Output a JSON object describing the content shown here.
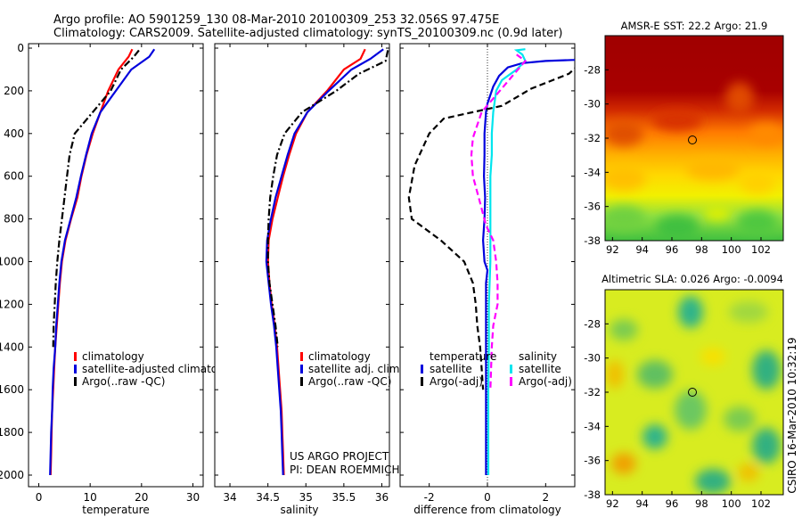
{
  "header": {
    "line1": "Argo profile: AO 5901259_130 08-Mar-2010 20100309_253 32.056S 97.475E",
    "line2": "Climatology: CARS2009. Satellite-adjusted climatology: synTS_20100309.nc (0.9d later)"
  },
  "credits": {
    "project": "US ARGO PROJECT",
    "pi": "PI: DEAN ROEMMICH",
    "stamp": "CSIRO 16-Mar-2010 10:32:19"
  },
  "colors": {
    "climatology": "#ff0000",
    "satellite": "#0000dd",
    "argo": "#000000",
    "salinity_satellite": "#00e5ee",
    "salinity_argo": "#ff00ff",
    "map_land": "#000000"
  },
  "chart_data": [
    {
      "id": "temperature",
      "type": "line",
      "xlabel": "temperature",
      "ylabel": "",
      "xlim": [
        -2,
        32
      ],
      "ylim": [
        2050,
        0
      ],
      "xticks": [
        "0",
        "10",
        "20",
        "30"
      ],
      "yticks": [
        "0",
        "200",
        "400",
        "600",
        "800",
        "1000",
        "1200",
        "1400",
        "1600",
        "1800",
        "2000"
      ],
      "legend": [
        {
          "label": "climatology",
          "color": "#ff0000"
        },
        {
          "label": "satellite-adjusted climatology",
          "color": "#0000dd"
        },
        {
          "label": "Argo(..raw -QC)",
          "color": "#000000"
        }
      ],
      "series": [
        {
          "name": "climatology",
          "style": "solid",
          "points": [
            [
              18.2,
              5
            ],
            [
              17.5,
              40
            ],
            [
              15.5,
              100
            ],
            [
              13.5,
              200
            ],
            [
              12,
              300
            ],
            [
              10.5,
              400
            ],
            [
              9.3,
              500
            ],
            [
              8.3,
              600
            ],
            [
              7.5,
              700
            ],
            [
              6.3,
              800
            ],
            [
              5.2,
              900
            ],
            [
              4.5,
              1000
            ],
            [
              4.1,
              1100
            ],
            [
              3.8,
              1200
            ],
            [
              3.5,
              1300
            ],
            [
              3.2,
              1400
            ],
            [
              3,
              1500
            ],
            [
              2.8,
              1600
            ],
            [
              2.6,
              1700
            ],
            [
              2.5,
              1800
            ],
            [
              2.4,
              1900
            ],
            [
              2.3,
              2000
            ]
          ]
        },
        {
          "name": "satellite-adjusted climatology",
          "style": "solid",
          "points": [
            [
              22.5,
              5
            ],
            [
              21.5,
              40
            ],
            [
              18,
              100
            ],
            [
              15,
              200
            ],
            [
              12,
              300
            ],
            [
              10.3,
              400
            ],
            [
              9.2,
              500
            ],
            [
              8.2,
              600
            ],
            [
              7.3,
              700
            ],
            [
              6.2,
              800
            ],
            [
              5.1,
              900
            ],
            [
              4.4,
              1000
            ],
            [
              4,
              1100
            ],
            [
              3.7,
              1200
            ],
            [
              3.4,
              1300
            ],
            [
              3.2,
              1400
            ],
            [
              2.9,
              1500
            ],
            [
              2.7,
              1600
            ],
            [
              2.6,
              1700
            ],
            [
              2.4,
              1800
            ],
            [
              2.3,
              1900
            ],
            [
              2.2,
              2000
            ]
          ]
        },
        {
          "name": "Argo(..raw -QC)",
          "style": "dashdot",
          "points": [
            [
              19.5,
              10
            ],
            [
              18.5,
              40
            ],
            [
              16,
              100
            ],
            [
              14,
              200
            ],
            [
              10.5,
              300
            ],
            [
              7,
              400
            ],
            [
              6,
              500
            ],
            [
              5.5,
              600
            ],
            [
              5,
              700
            ],
            [
              4.5,
              800
            ],
            [
              4,
              900
            ],
            [
              3.6,
              1000
            ],
            [
              3.3,
              1100
            ],
            [
              3.1,
              1200
            ],
            [
              2.9,
              1300
            ],
            [
              2.8,
              1400
            ]
          ]
        }
      ]
    },
    {
      "id": "salinity",
      "type": "line",
      "xlabel": "salinity",
      "ylabel": "",
      "xlim": [
        33.8,
        36.1
      ],
      "ylim": [
        2050,
        0
      ],
      "xticks": [
        "34",
        "34.5",
        "35",
        "35.5",
        "36"
      ],
      "legend": [
        {
          "label": "climatology",
          "color": "#ff0000"
        },
        {
          "label": "satellite adj. clim.",
          "color": "#0000dd"
        },
        {
          "label": "Argo(..raw -QC)",
          "color": "#000000"
        }
      ],
      "series": [
        {
          "name": "climatology",
          "style": "solid",
          "points": [
            [
              35.78,
              5
            ],
            [
              35.72,
              50
            ],
            [
              35.5,
              100
            ],
            [
              35.28,
              200
            ],
            [
              35.02,
              300
            ],
            [
              34.87,
              400
            ],
            [
              34.78,
              500
            ],
            [
              34.7,
              600
            ],
            [
              34.63,
              700
            ],
            [
              34.56,
              800
            ],
            [
              34.51,
              900
            ],
            [
              34.5,
              1000
            ],
            [
              34.52,
              1100
            ],
            [
              34.55,
              1200
            ],
            [
              34.59,
              1300
            ],
            [
              34.62,
              1400
            ],
            [
              34.64,
              1500
            ],
            [
              34.66,
              1600
            ],
            [
              34.68,
              1700
            ],
            [
              34.69,
              1800
            ],
            [
              34.7,
              1900
            ],
            [
              34.71,
              2000
            ]
          ]
        },
        {
          "name": "satellite adj. clim.",
          "style": "solid",
          "points": [
            [
              36.02,
              5
            ],
            [
              35.85,
              50
            ],
            [
              35.6,
              100
            ],
            [
              35.3,
              200
            ],
            [
              35.02,
              300
            ],
            [
              34.85,
              400
            ],
            [
              34.76,
              500
            ],
            [
              34.68,
              600
            ],
            [
              34.6,
              700
            ],
            [
              34.54,
              800
            ],
            [
              34.49,
              900
            ],
            [
              34.48,
              1000
            ],
            [
              34.51,
              1100
            ],
            [
              34.54,
              1200
            ],
            [
              34.58,
              1300
            ],
            [
              34.61,
              1400
            ],
            [
              34.63,
              1500
            ],
            [
              34.65,
              1600
            ],
            [
              34.67,
              1700
            ],
            [
              34.68,
              1800
            ],
            [
              34.69,
              1900
            ],
            [
              34.7,
              2000
            ]
          ]
        },
        {
          "name": "Argo(..raw -QC)",
          "style": "dashdot",
          "points": [
            [
              36.08,
              10
            ],
            [
              36.05,
              60
            ],
            [
              35.7,
              120
            ],
            [
              35.4,
              200
            ],
            [
              34.95,
              300
            ],
            [
              34.72,
              400
            ],
            [
              34.62,
              500
            ],
            [
              34.57,
              600
            ],
            [
              34.53,
              700
            ],
            [
              34.51,
              800
            ],
            [
              34.5,
              900
            ],
            [
              34.5,
              1000
            ],
            [
              34.52,
              1100
            ],
            [
              34.56,
              1200
            ],
            [
              34.6,
              1300
            ],
            [
              34.63,
              1400
            ]
          ]
        }
      ]
    },
    {
      "id": "difference",
      "type": "line",
      "xlabel": "difference from climatology",
      "ylabel": "",
      "xlim": [
        -3,
        3
      ],
      "ylim": [
        2050,
        0
      ],
      "xticks": [
        "-2",
        "0",
        "2"
      ],
      "legend_groups": [
        {
          "title": "temperature",
          "items": [
            {
              "label": "satellite",
              "color": "#0000dd"
            },
            {
              "label": "Argo(-adj)",
              "color": "#000000"
            }
          ]
        },
        {
          "title": "salinity",
          "items": [
            {
              "label": "satellite",
              "color": "#00e5ee"
            },
            {
              "label": "Argo(-adj)",
              "color": "#ff00ff"
            }
          ]
        }
      ],
      "series": [
        {
          "name": "temperature satellite",
          "style": "solid",
          "points": [
            [
              3.3,
              50
            ],
            [
              3.0,
              55
            ],
            [
              2,
              60
            ],
            [
              1.2,
              70
            ],
            [
              0.7,
              90
            ],
            [
              0.4,
              130
            ],
            [
              0.2,
              180
            ],
            [
              0,
              260
            ],
            [
              -0.05,
              300
            ],
            [
              -0.1,
              400
            ],
            [
              -0.1,
              500
            ],
            [
              -0.12,
              600
            ],
            [
              -0.08,
              700
            ],
            [
              -0.1,
              800
            ],
            [
              -0.15,
              900
            ],
            [
              -0.1,
              1000
            ],
            [
              0,
              1040
            ],
            [
              -0.05,
              1100
            ],
            [
              -0.05,
              1200
            ],
            [
              -0.05,
              1300
            ],
            [
              -0.05,
              1400
            ],
            [
              -0.05,
              1500
            ],
            [
              -0.05,
              1600
            ],
            [
              -0.05,
              1700
            ],
            [
              -0.05,
              1800
            ],
            [
              -0.05,
              1900
            ],
            [
              -0.05,
              2000
            ]
          ]
        },
        {
          "name": "temperature Argo(-adj)",
          "style": "dashed",
          "points": [
            [
              3,
              45
            ],
            [
              3.2,
              70
            ],
            [
              2.8,
              120
            ],
            [
              1.5,
              190
            ],
            [
              0.5,
              270
            ],
            [
              -1.5,
              330
            ],
            [
              -2,
              400
            ],
            [
              -2.5,
              550
            ],
            [
              -2.7,
              700
            ],
            [
              -2.6,
              800
            ],
            [
              -1.6,
              900
            ],
            [
              -0.8,
              1000
            ],
            [
              -0.5,
              1100
            ],
            [
              -0.4,
              1200
            ],
            [
              -0.35,
              1300
            ],
            [
              -0.25,
              1400
            ],
            [
              -0.2,
              1500
            ],
            [
              -0.15,
              1600
            ]
          ]
        },
        {
          "name": "salinity satellite",
          "style": "solid",
          "points": [
            [
              1.3,
              5
            ],
            [
              1.0,
              10
            ],
            [
              1.2,
              30
            ],
            [
              1.3,
              60
            ],
            [
              1.0,
              100
            ],
            [
              0.5,
              150
            ],
            [
              0.3,
              200
            ],
            [
              0.2,
              300
            ],
            [
              0.15,
              400
            ],
            [
              0.15,
              500
            ],
            [
              0.1,
              600
            ],
            [
              0.1,
              800
            ],
            [
              0.1,
              1000
            ],
            [
              0.05,
              1200
            ],
            [
              0.05,
              1400
            ],
            [
              0.03,
              1600
            ],
            [
              0.03,
              1800
            ],
            [
              0.03,
              2000
            ]
          ]
        },
        {
          "name": "salinity Argo(-adj)",
          "style": "dashed",
          "points": [
            [
              1.0,
              30
            ],
            [
              1.3,
              60
            ],
            [
              0.8,
              140
            ],
            [
              0.3,
              220
            ],
            [
              -0.2,
              300
            ],
            [
              -0.5,
              420
            ],
            [
              -0.55,
              500
            ],
            [
              -0.5,
              600
            ],
            [
              -0.3,
              700
            ],
            [
              -0.05,
              830
            ],
            [
              0.2,
              900
            ],
            [
              0.3,
              1000
            ],
            [
              0.35,
              1100
            ],
            [
              0.35,
              1200
            ],
            [
              0.2,
              1300
            ],
            [
              0.15,
              1400
            ],
            [
              0.1,
              1600
            ]
          ]
        }
      ]
    },
    {
      "id": "sst-map",
      "type": "heatmap",
      "title": "AMSR-E SST: 22.2 Argo: 21.9",
      "xlim": [
        91.5,
        103.5
      ],
      "ylim": [
        -38,
        -26
      ],
      "xticks": [
        "92",
        "94",
        "96",
        "98",
        "100",
        "102"
      ],
      "yticks": [
        "-28",
        "-30",
        "-32",
        "-34",
        "-36",
        "-38"
      ],
      "argo_position": [
        97.475,
        -32.056
      ],
      "colormap": "jet"
    },
    {
      "id": "sla-map",
      "type": "heatmap",
      "title": "Altimetric SLA: 0.026 Argo: -0.0094",
      "xlim": [
        91.5,
        103.5
      ],
      "ylim": [
        -38,
        -26
      ],
      "xticks": [
        "92",
        "94",
        "96",
        "98",
        "100",
        "102"
      ],
      "yticks": [
        "-28",
        "-30",
        "-32",
        "-34",
        "-36",
        "-38"
      ],
      "argo_position": [
        97.475,
        -32.056
      ],
      "colormap": "jet"
    }
  ]
}
